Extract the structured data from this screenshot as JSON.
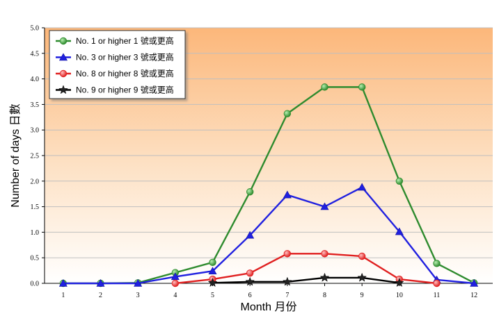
{
  "chart_data": {
    "type": "line",
    "xlabel": "Month 月份",
    "ylabel": "Number of days 日數",
    "x": [
      1,
      2,
      3,
      4,
      5,
      6,
      7,
      8,
      9,
      10,
      11,
      12
    ],
    "xlim": [
      0.5,
      12.5
    ],
    "ylim": [
      0,
      5.0
    ],
    "yticks": [
      "0.0",
      "0.5",
      "1.0",
      "1.5",
      "2.0",
      "2.5",
      "3.0",
      "3.5",
      "4.0",
      "4.5",
      "5.0"
    ],
    "xticks": [
      "1",
      "2",
      "3",
      "4",
      "5",
      "6",
      "7",
      "8",
      "9",
      "10",
      "11",
      "12"
    ],
    "grid": true,
    "legend_position": "top-left",
    "series": [
      {
        "name": "No. 1 or higher 1 號或更高",
        "color": "#2e8b2e",
        "marker": "circle",
        "values": [
          0,
          0,
          0.01,
          0.21,
          0.41,
          1.79,
          3.32,
          3.84,
          3.84,
          2.0,
          0.39,
          0.01
        ]
      },
      {
        "name": "No. 3 or higher 3 號或更高",
        "color": "#2020e0",
        "marker": "triangle",
        "values": [
          0,
          0,
          0,
          0.13,
          0.24,
          0.94,
          1.73,
          1.5,
          1.88,
          1.01,
          0.07,
          0
        ]
      },
      {
        "name": "No. 8 or higher 8 號或更高",
        "color": "#e02020",
        "marker": "circle",
        "values": [
          null,
          null,
          null,
          0,
          0.08,
          0.2,
          0.58,
          0.58,
          0.53,
          0.08,
          0,
          null
        ]
      },
      {
        "name": "No. 9 or higher 9 號或更高",
        "color": "#000000",
        "marker": "star",
        "values": [
          null,
          null,
          null,
          null,
          0.01,
          0.03,
          0.03,
          0.11,
          0.11,
          0.01,
          null,
          null
        ]
      }
    ]
  }
}
